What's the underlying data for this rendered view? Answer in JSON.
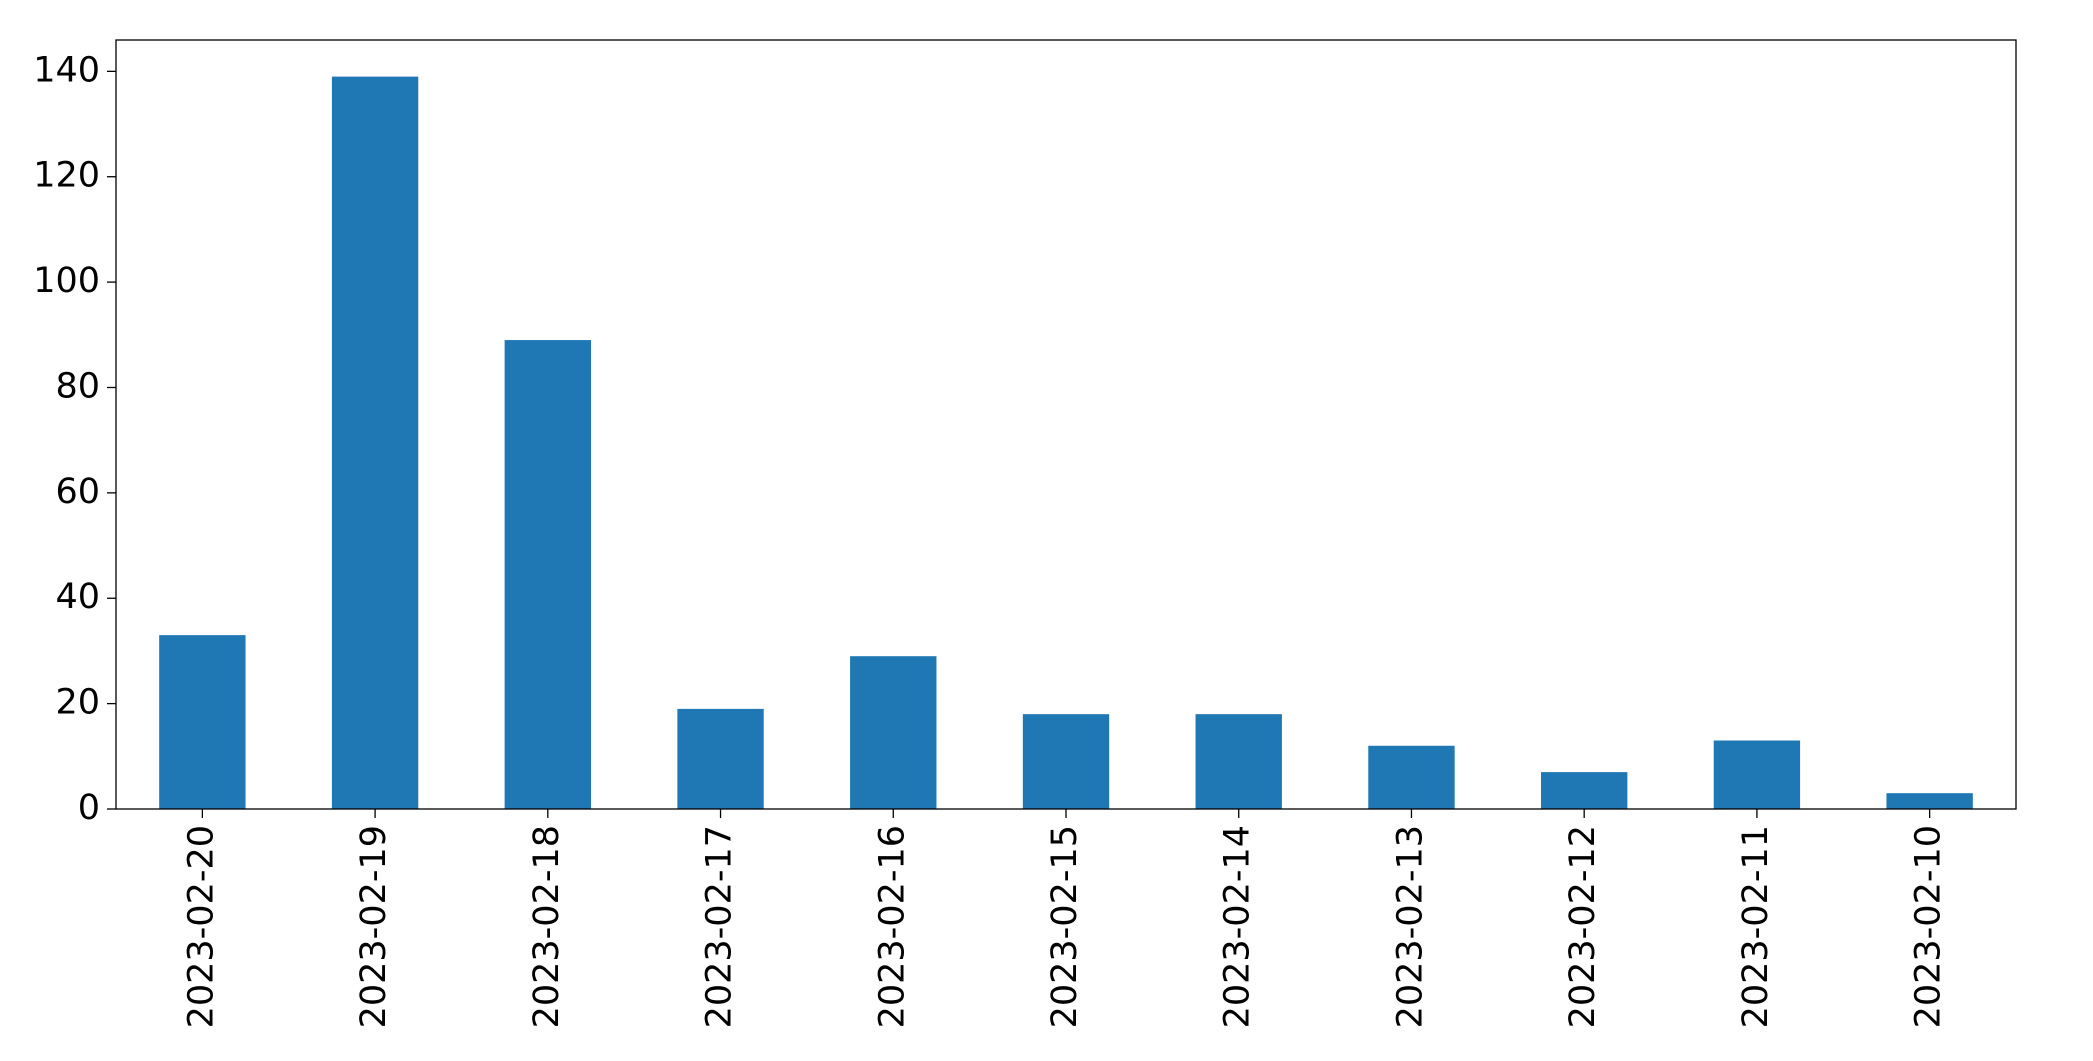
{
  "chart_data": {
    "type": "bar",
    "categories": [
      "2023-02-20",
      "2023-02-19",
      "2023-02-18",
      "2023-02-17",
      "2023-02-16",
      "2023-02-15",
      "2023-02-14",
      "2023-02-13",
      "2023-02-12",
      "2023-02-11",
      "2023-02-10"
    ],
    "values": [
      33,
      139,
      89,
      19,
      29,
      18,
      18,
      12,
      7,
      13,
      3
    ],
    "color": "#1f77b4",
    "ylim": [
      0,
      145.95
    ],
    "yticks": [
      0,
      20,
      40,
      60,
      80,
      100,
      120,
      140
    ],
    "grid": false
  }
}
